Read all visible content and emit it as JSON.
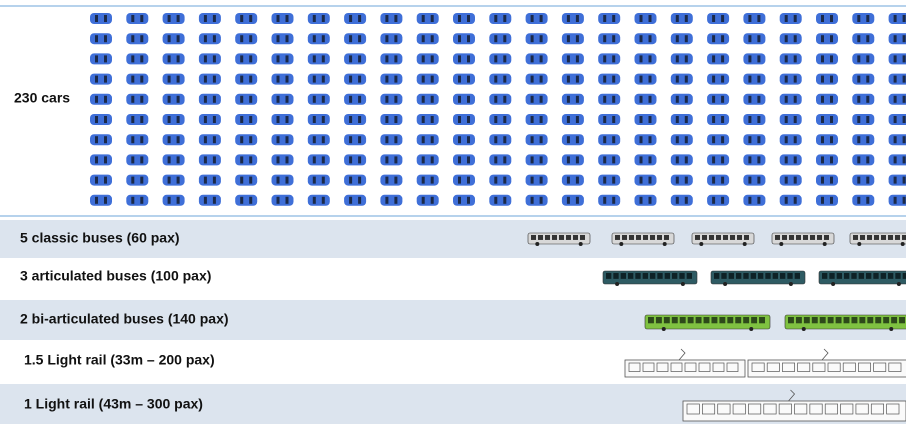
{
  "rows": [
    {
      "label": "230 cars"
    },
    {
      "label": "5 classic buses (60 pax)"
    },
    {
      "label": "3 articulated buses (100 pax)"
    },
    {
      "label": "2 bi-articulated buses (140 pax)"
    },
    {
      "label": "1.5 Light rail (33m – 200 pax)"
    },
    {
      "label": "1 Light rail (43m – 300 pax)"
    }
  ]
}
